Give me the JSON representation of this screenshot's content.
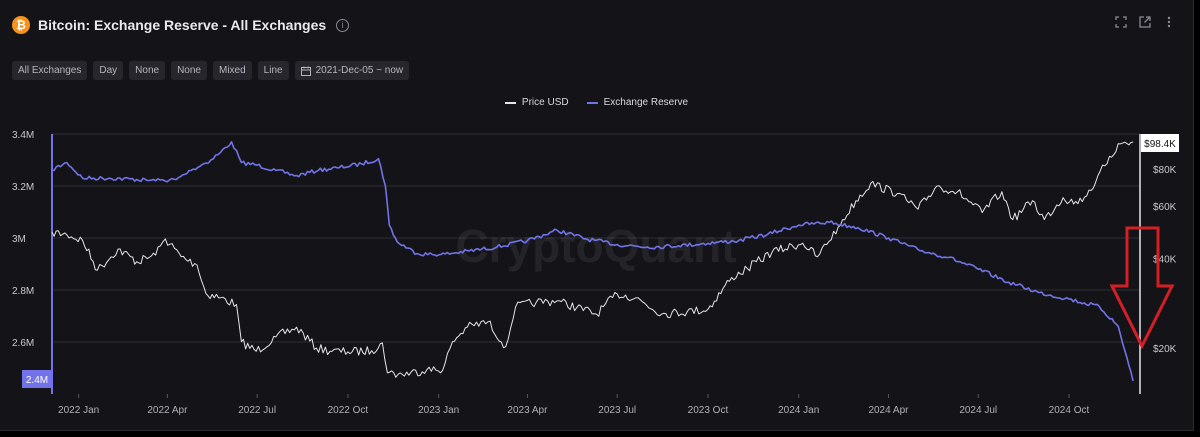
{
  "header": {
    "title": "Bitcoin: Exchange Reserve - All Exchanges",
    "coin_symbol": "₿",
    "info_symbol": "i"
  },
  "toolbar": {
    "chips": [
      "All Exchanges",
      "Day",
      "None",
      "None",
      "Mixed",
      "Line"
    ],
    "date_range": "2021-Dec-05 ~ now"
  },
  "colors": {
    "background": "#141418",
    "price_line": "#e6e6ea",
    "reserve_line": "#7273e8",
    "annotation_arrow": "#d41f26",
    "grid": "#2c2c34"
  },
  "watermark": "CryptoQuant",
  "chart_data": {
    "type": "line",
    "legend": [
      "Price USD",
      "Exchange Reserve"
    ],
    "legend_placement": "top-center",
    "grid": "horizontal",
    "x_ticks": [
      "2022 Jan",
      "2022 Apr",
      "2022 Jul",
      "2022 Oct",
      "2023 Jan",
      "2023 Apr",
      "2023 Jul",
      "2023 Oct",
      "2024 Jan",
      "2024 Apr",
      "2024 Jul",
      "2024 Oct"
    ],
    "y_left": {
      "ticks": [
        "3.4M",
        "3.2M",
        "3M",
        "2.8M",
        "2.6M"
      ],
      "range": [
        2400000,
        3400000
      ],
      "current_label": "2.4M"
    },
    "y_right": {
      "scale": "log",
      "ticks": [
        "$80K",
        "$60K",
        "$40K",
        "$20K"
      ],
      "current_label": "$98.4K"
    },
    "series": [
      {
        "name": "Exchange Reserve",
        "axis": "left",
        "x": [
          "2021-12-05",
          "2021-12-20",
          "2022-01-05",
          "2022-02-01",
          "2022-03-01",
          "2022-03-20",
          "2022-04-10",
          "2022-04-25",
          "2022-05-15",
          "2022-05-25",
          "2022-06-05",
          "2022-06-15",
          "2022-07-01",
          "2022-07-20",
          "2022-08-10",
          "2022-09-01",
          "2022-09-20",
          "2022-10-15",
          "2022-11-01",
          "2022-11-08",
          "2022-11-12",
          "2022-11-20",
          "2022-12-10",
          "2023-01-01",
          "2023-02-01",
          "2023-03-01",
          "2023-04-01",
          "2023-05-01",
          "2023-06-01",
          "2023-07-01",
          "2023-08-01",
          "2023-09-01",
          "2023-10-01",
          "2023-11-01",
          "2023-12-01",
          "2024-01-01",
          "2024-02-01",
          "2024-03-01",
          "2024-04-01",
          "2024-05-01",
          "2024-06-01",
          "2024-07-01",
          "2024-08-01",
          "2024-09-01",
          "2024-10-01",
          "2024-11-01",
          "2024-11-20",
          "2024-12-05"
        ],
        "values": [
          3262000,
          3290000,
          3230000,
          3230000,
          3225000,
          3220000,
          3225000,
          3260000,
          3300000,
          3330000,
          3370000,
          3290000,
          3280000,
          3260000,
          3240000,
          3260000,
          3270000,
          3285000,
          3305000,
          3200000,
          3050000,
          2985000,
          2940000,
          2935000,
          2950000,
          2965000,
          2990000,
          3030000,
          2995000,
          2975000,
          2965000,
          2970000,
          2980000,
          2990000,
          3015000,
          3050000,
          3060000,
          3040000,
          3000000,
          2955000,
          2925000,
          2880000,
          2830000,
          2790000,
          2765000,
          2735000,
          2660000,
          2450000
        ]
      },
      {
        "name": "Price USD",
        "axis": "right",
        "x": [
          "2021-12-05",
          "2021-12-20",
          "2022-01-05",
          "2022-01-20",
          "2022-02-10",
          "2022-03-01",
          "2022-03-20",
          "2022-03-30",
          "2022-04-15",
          "2022-05-01",
          "2022-05-10",
          "2022-05-25",
          "2022-06-10",
          "2022-06-15",
          "2022-06-30",
          "2022-07-20",
          "2022-08-10",
          "2022-08-30",
          "2022-09-15",
          "2022-10-01",
          "2022-10-25",
          "2022-11-05",
          "2022-11-10",
          "2022-11-25",
          "2022-12-20",
          "2023-01-05",
          "2023-01-15",
          "2023-01-30",
          "2023-02-20",
          "2023-03-10",
          "2023-03-20",
          "2023-04-10",
          "2023-05-01",
          "2023-06-10",
          "2023-07-01",
          "2023-07-20",
          "2023-08-15",
          "2023-09-10",
          "2023-10-01",
          "2023-10-25",
          "2023-11-10",
          "2023-12-05",
          "2024-01-05",
          "2024-01-20",
          "2024-02-10",
          "2024-02-28",
          "2024-03-14",
          "2024-04-10",
          "2024-05-01",
          "2024-05-20",
          "2024-06-10",
          "2024-07-05",
          "2024-07-25",
          "2024-08-05",
          "2024-08-25",
          "2024-09-06",
          "2024-09-25",
          "2024-10-10",
          "2024-10-28",
          "2024-11-11",
          "2024-11-22",
          "2024-12-05"
        ],
        "values": [
          49000,
          48000,
          46000,
          36500,
          43000,
          39000,
          41000,
          46500,
          40500,
          38000,
          30500,
          29500,
          28000,
          21000,
          19500,
          21800,
          23500,
          20000,
          19500,
          19400,
          19600,
          20800,
          16500,
          16300,
          16900,
          16800,
          21000,
          23500,
          24500,
          20200,
          27500,
          28500,
          28800,
          26000,
          30400,
          29500,
          26000,
          26500,
          27000,
          34500,
          37000,
          42000,
          45000,
          40500,
          51000,
          62500,
          71500,
          66000,
          58500,
          70000,
          67000,
          57000,
          67000,
          54000,
          62500,
          54000,
          64000,
          61000,
          72000,
          88000,
          97000,
          98400
        ]
      }
    ]
  }
}
